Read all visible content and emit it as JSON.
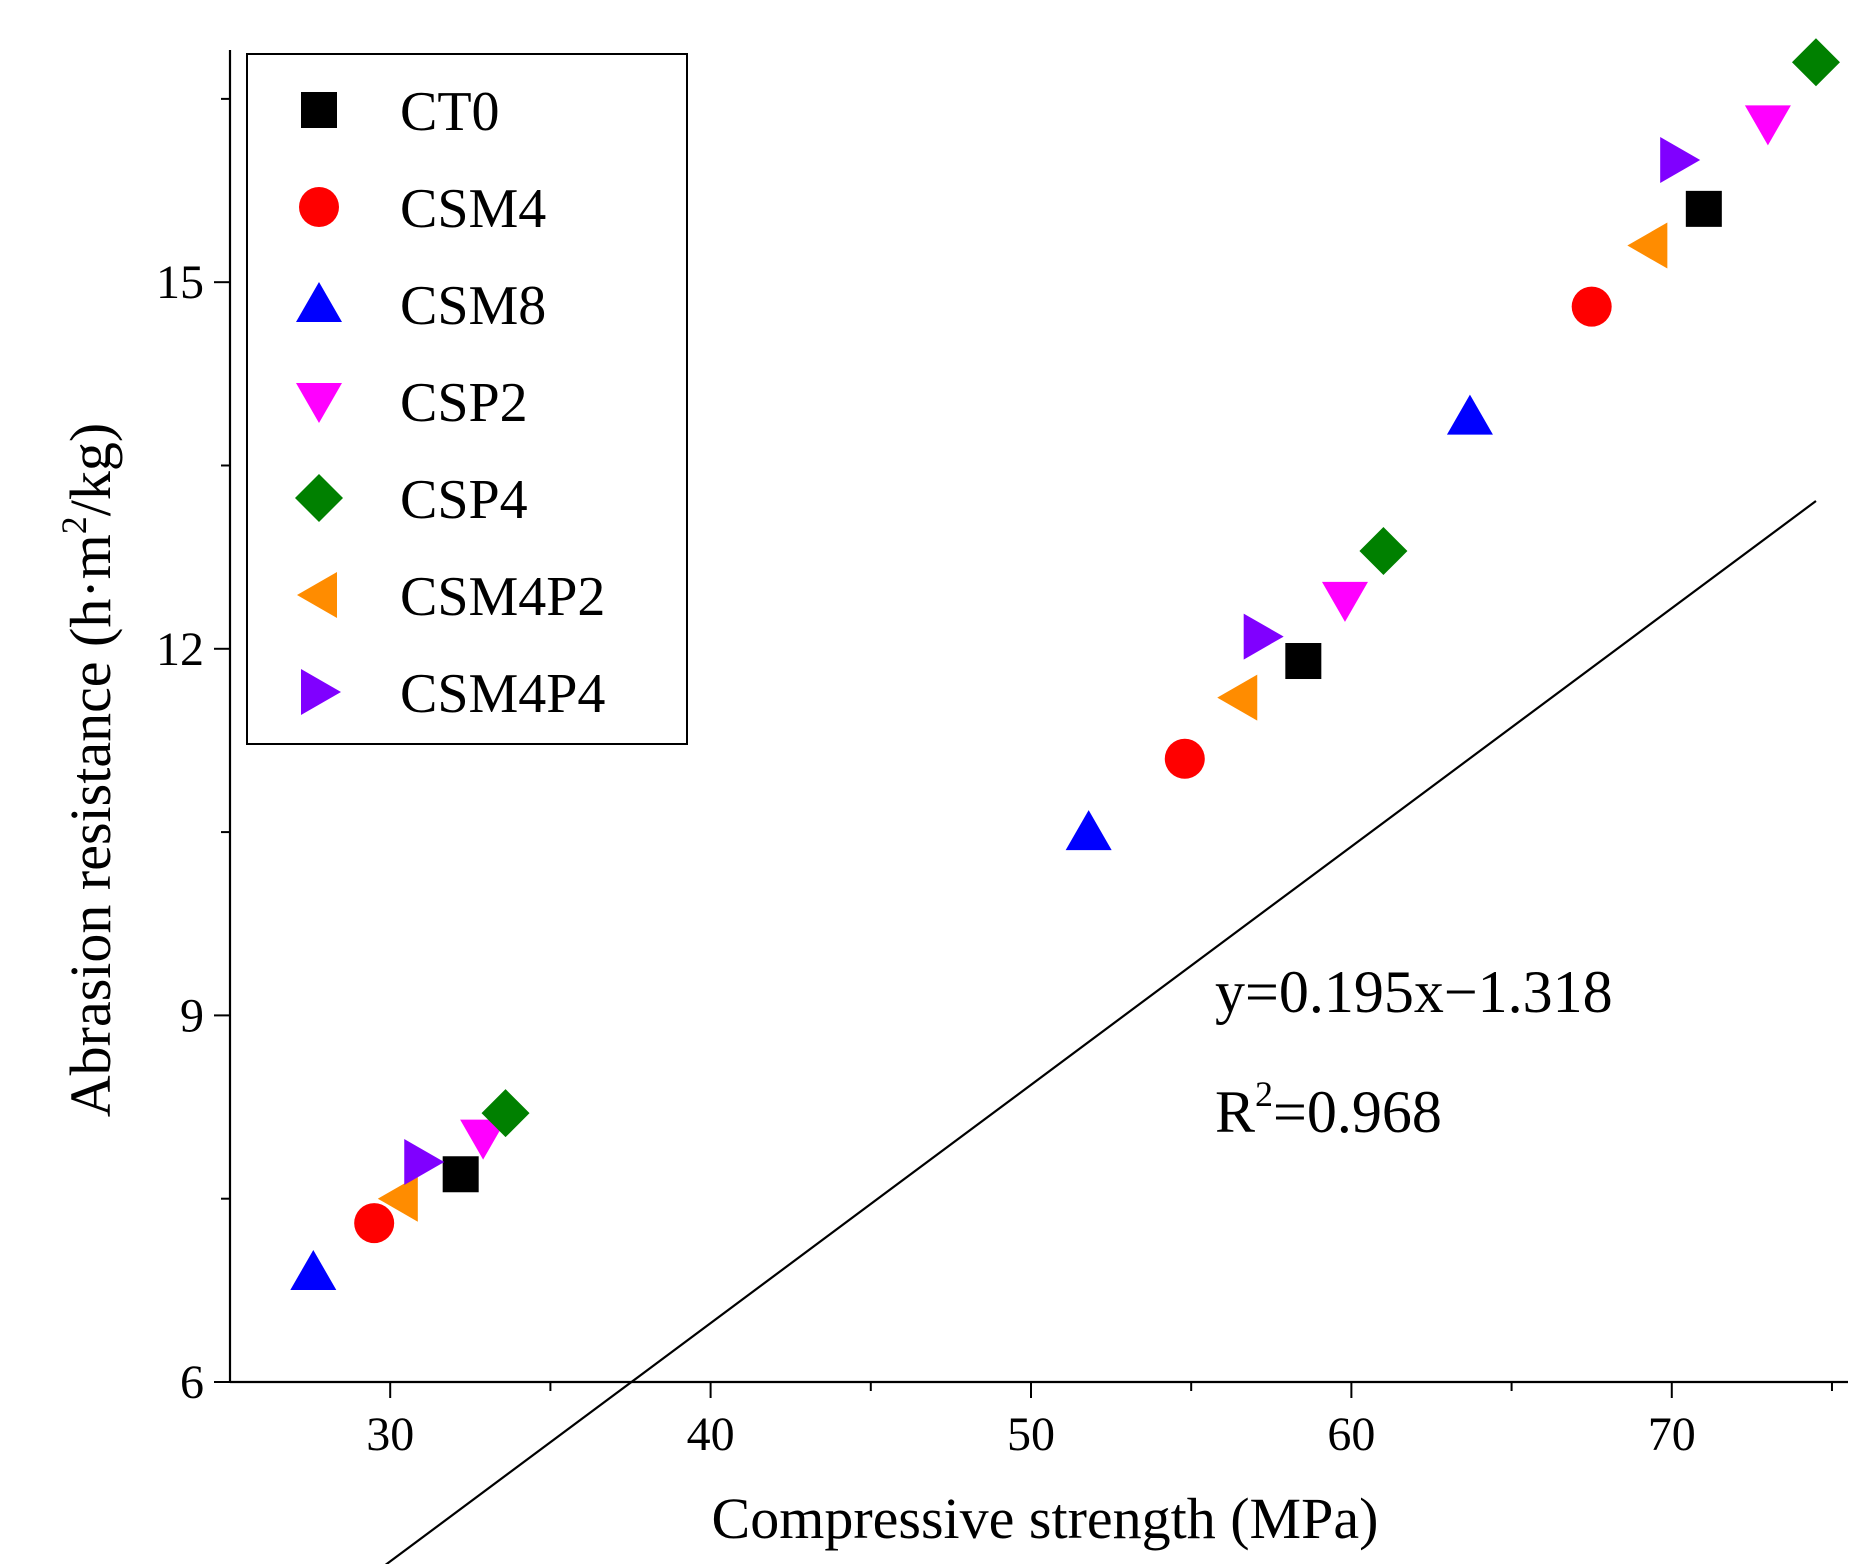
{
  "chart_data": {
    "type": "scatter",
    "title": "",
    "xlabel": "Compressive strength (MPa)",
    "ylabel_main": "Abrasion resistance (h·m",
    "ylabel_sup": "2",
    "ylabel_tail": "/kg)",
    "xlim": [
      25,
      75.5
    ],
    "ylim": [
      6,
      16.9
    ],
    "x_ticks": [
      30,
      40,
      50,
      60,
      70
    ],
    "x_minor_ticks": [
      35,
      45,
      55,
      65,
      75
    ],
    "y_ticks": [
      6,
      9,
      12,
      15
    ],
    "y_minor_ticks": [
      7.5,
      10.5,
      13.5,
      16.5
    ],
    "grid": false,
    "legend_position": "top-left",
    "series": [
      {
        "name": "CT0",
        "marker": "square",
        "color": "#000000",
        "points": [
          [
            32.2,
            7.7
          ],
          [
            58.5,
            11.9
          ],
          [
            71.0,
            15.6
          ]
        ]
      },
      {
        "name": "CSM4",
        "marker": "circle",
        "color": "#ff0000",
        "points": [
          [
            29.5,
            7.3
          ],
          [
            54.8,
            11.1
          ],
          [
            67.5,
            14.8
          ]
        ]
      },
      {
        "name": "CSM8",
        "marker": "triangle-up",
        "color": "#0000ff",
        "points": [
          [
            27.6,
            6.9
          ],
          [
            51.8,
            10.5
          ],
          [
            63.7,
            13.9
          ]
        ]
      },
      {
        "name": "CSP2",
        "marker": "triangle-down",
        "color": "#ff00ff",
        "points": [
          [
            32.9,
            8.0
          ],
          [
            59.8,
            12.4
          ],
          [
            73.0,
            16.3
          ]
        ]
      },
      {
        "name": "CSP4",
        "marker": "diamond",
        "color": "#008000",
        "points": [
          [
            33.6,
            8.2
          ],
          [
            61.0,
            12.8
          ],
          [
            74.5,
            16.8
          ]
        ]
      },
      {
        "name": "CSM4P2",
        "marker": "triangle-left",
        "color": "#ff8c00",
        "points": [
          [
            30.3,
            7.5
          ],
          [
            56.5,
            11.6
          ],
          [
            69.3,
            15.3
          ]
        ]
      },
      {
        "name": "CSM4P4",
        "marker": "triangle-right",
        "color": "#8000ff",
        "points": [
          [
            31.0,
            7.8
          ],
          [
            57.2,
            12.1
          ],
          [
            70.2,
            16.0
          ]
        ]
      }
    ],
    "fit_line": {
      "slope": 0.195,
      "intercept": -1.318,
      "x_range": [
        27.6,
        74.5
      ],
      "color": "#000000"
    },
    "equation_line1": "y=0.195x−1.318",
    "equation_r_main": "R",
    "equation_r_sup": "2",
    "equation_r_tail": "=0.968"
  }
}
